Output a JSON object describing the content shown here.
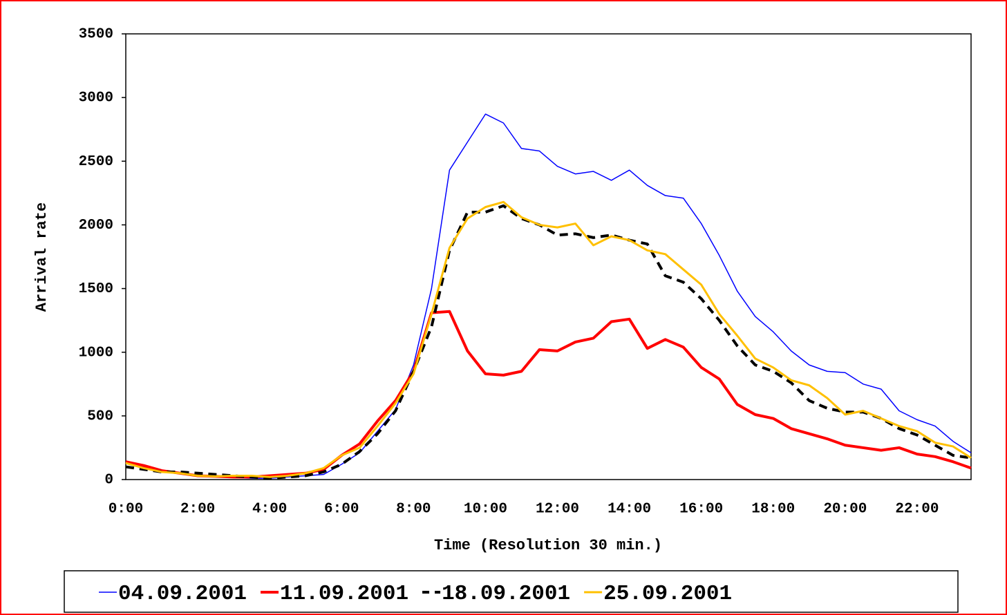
{
  "chart_data": {
    "type": "line",
    "y_label": "Arrival rate",
    "x_label": "Time (Resolution 30 min.)",
    "categories": [
      "0:00",
      null,
      null,
      null,
      "2:00",
      null,
      null,
      null,
      "4:00",
      null,
      null,
      null,
      "6:00",
      null,
      null,
      null,
      "8:00",
      null,
      null,
      null,
      "10:00",
      null,
      null,
      null,
      "12:00",
      null,
      null,
      null,
      "14:00",
      null,
      null,
      null,
      "16:00",
      null,
      null,
      null,
      "18:00",
      null,
      null,
      null,
      "20:00",
      null,
      null,
      null,
      "22:00",
      null,
      null,
      null
    ],
    "ylim": [
      0,
      3500
    ],
    "yticks": [
      0,
      500,
      1000,
      1500,
      2000,
      2500,
      3000,
      3500
    ],
    "legend": "bottom",
    "series": [
      {
        "name": "04.09.2001",
        "color": "#0000ff",
        "width": 1.5,
        "dashed": false,
        "values": [
          130,
          100,
          60,
          50,
          30,
          20,
          15,
          10,
          10,
          20,
          30,
          40,
          120,
          210,
          380,
          550,
          900,
          1500,
          2430,
          2650,
          2870,
          2800,
          2600,
          2580,
          2460,
          2400,
          2420,
          2350,
          2430,
          2310,
          2230,
          2210,
          2010,
          1760,
          1480,
          1280,
          1160,
          1010,
          900,
          850,
          840,
          750,
          710,
          540,
          470,
          420,
          300,
          210
        ]
      },
      {
        "name": "11.09.2001",
        "color": "#ff0000",
        "width": 4,
        "dashed": false,
        "values": [
          140,
          110,
          70,
          50,
          30,
          25,
          20,
          20,
          30,
          40,
          50,
          80,
          190,
          280,
          460,
          620,
          850,
          1310,
          1320,
          1010,
          830,
          820,
          850,
          1020,
          1010,
          1080,
          1110,
          1240,
          1260,
          1030,
          1100,
          1040,
          880,
          790,
          590,
          510,
          480,
          400,
          360,
          320,
          270,
          250,
          230,
          250,
          200,
          180,
          140,
          90
        ]
      },
      {
        "name": "18.09.2001",
        "color": "#000000",
        "width": 4,
        "dashed": true,
        "values": [
          100,
          80,
          60,
          60,
          50,
          40,
          30,
          20,
          10,
          20,
          30,
          60,
          120,
          220,
          360,
          540,
          850,
          1200,
          1800,
          2100,
          2100,
          2150,
          2050,
          2000,
          1920,
          1930,
          1900,
          1920,
          1880,
          1850,
          1600,
          1550,
          1420,
          1250,
          1050,
          900,
          850,
          760,
          620,
          560,
          530,
          530,
          480,
          400,
          350,
          270,
          190,
          170
        ]
      },
      {
        "name": "25.09.2001",
        "color": "#ffc000",
        "width": 3,
        "dashed": false,
        "values": [
          130,
          90,
          60,
          50,
          30,
          25,
          30,
          30,
          20,
          30,
          50,
          90,
          190,
          250,
          420,
          600,
          830,
          1300,
          1820,
          2050,
          2140,
          2180,
          2060,
          2000,
          1980,
          2010,
          1840,
          1910,
          1880,
          1800,
          1770,
          1650,
          1530,
          1300,
          1130,
          950,
          880,
          780,
          740,
          640,
          510,
          540,
          480,
          420,
          380,
          290,
          260,
          170
        ]
      }
    ]
  }
}
